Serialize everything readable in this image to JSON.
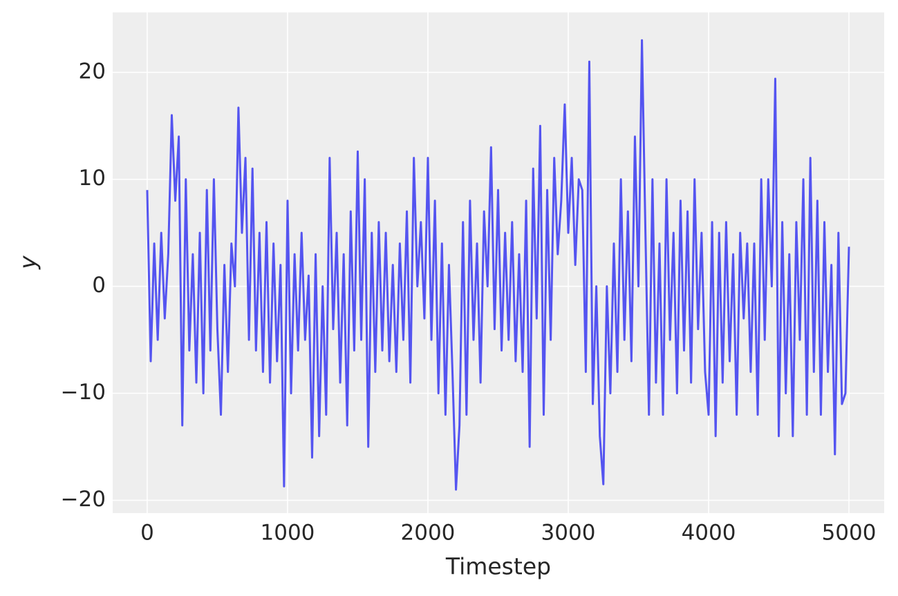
{
  "chart_data": {
    "type": "line",
    "x_label": "Timestep",
    "y_label": "y",
    "color": "#4b4bef",
    "grid": true,
    "xlim": [
      -246,
      5251
    ],
    "ylim": [
      -21.2,
      25.6
    ],
    "xticks": [
      0,
      1000,
      2000,
      3000,
      4000,
      5000
    ],
    "yticks": [
      {
        "value": -20,
        "label": "−20"
      },
      {
        "value": -10,
        "label": "−10"
      },
      0,
      10,
      20
    ],
    "x": [
      0,
      25,
      50,
      75,
      100,
      125,
      150,
      175,
      200,
      225,
      250,
      275,
      300,
      325,
      350,
      375,
      400,
      425,
      450,
      475,
      500,
      525,
      550,
      575,
      600,
      625,
      650,
      675,
      700,
      725,
      750,
      775,
      800,
      825,
      850,
      875,
      900,
      925,
      950,
      975,
      1000,
      1025,
      1050,
      1075,
      1100,
      1125,
      1150,
      1175,
      1200,
      1225,
      1250,
      1275,
      1300,
      1325,
      1350,
      1375,
      1400,
      1425,
      1450,
      1475,
      1500,
      1525,
      1550,
      1575,
      1600,
      1625,
      1650,
      1675,
      1700,
      1725,
      1750,
      1775,
      1800,
      1825,
      1850,
      1875,
      1900,
      1925,
      1950,
      1975,
      2000,
      2025,
      2050,
      2075,
      2100,
      2125,
      2150,
      2175,
      2200,
      2225,
      2250,
      2275,
      2300,
      2325,
      2350,
      2375,
      2400,
      2425,
      2450,
      2475,
      2500,
      2525,
      2550,
      2575,
      2600,
      2625,
      2650,
      2675,
      2700,
      2725,
      2750,
      2775,
      2800,
      2825,
      2850,
      2875,
      2900,
      2925,
      2950,
      2975,
      3000,
      3025,
      3050,
      3075,
      3100,
      3125,
      3150,
      3175,
      3200,
      3225,
      3250,
      3275,
      3300,
      3325,
      3350,
      3375,
      3400,
      3425,
      3450,
      3475,
      3500,
      3525,
      3550,
      3575,
      3600,
      3625,
      3650,
      3675,
      3700,
      3725,
      3750,
      3775,
      3800,
      3825,
      3850,
      3875,
      3900,
      3925,
      3950,
      3975,
      4000,
      4025,
      4050,
      4075,
      4100,
      4125,
      4150,
      4175,
      4200,
      4225,
      4250,
      4275,
      4300,
      4325,
      4350,
      4375,
      4400,
      4425,
      4450,
      4475,
      4500,
      4525,
      4550,
      4575,
      4600,
      4625,
      4650,
      4675,
      4700,
      4725,
      4750,
      4775,
      4800,
      4825,
      4850,
      4875,
      4900,
      4925,
      4950,
      4975,
      5000
    ],
    "values": [
      9,
      -7,
      4,
      -5,
      5,
      -3,
      3,
      16,
      8,
      14,
      -13,
      10,
      -6,
      3,
      -9,
      5,
      -10,
      9,
      -6,
      10,
      -4,
      -12,
      2,
      -8,
      4,
      0,
      16.7,
      5,
      12,
      -5,
      11,
      -6,
      5,
      -8,
      6,
      -9,
      4,
      -7,
      2,
      -18.7,
      8,
      -10,
      3,
      -6,
      5,
      -5,
      1,
      -16,
      3,
      -14,
      0,
      -12,
      12,
      -4,
      5,
      -9,
      3,
      -13,
      7,
      -6,
      12.6,
      -5,
      10,
      -15,
      5,
      -8,
      6,
      -6,
      5,
      -7,
      2,
      -8,
      4,
      -5,
      7,
      -9,
      12,
      0,
      6,
      -3,
      12,
      -5,
      8,
      -10,
      4,
      -12,
      2,
      -8,
      -19,
      -13,
      6,
      -12,
      8,
      -5,
      4,
      -9,
      7,
      0,
      13,
      -4,
      9,
      -6,
      5,
      -5,
      6,
      -7,
      3,
      -8,
      8,
      -15,
      11,
      -3,
      15,
      -12,
      9,
      -5,
      12,
      3,
      8,
      17,
      5,
      12,
      2,
      10,
      9,
      -8,
      21,
      -11,
      0,
      -14,
      -18.5,
      0,
      -10,
      4,
      -8,
      10,
      -5,
      7,
      -7,
      14,
      0,
      23,
      5,
      -12,
      10,
      -9,
      4,
      -12,
      10,
      -5,
      5,
      -10,
      8,
      -6,
      7,
      -9,
      10,
      -4,
      5,
      -8,
      -12,
      6,
      -14,
      5,
      -9,
      6,
      -7,
      3,
      -12,
      5,
      -3,
      4,
      -8,
      4,
      -12,
      10,
      -5,
      10,
      0,
      19.4,
      -14,
      6,
      -10,
      3,
      -14,
      6,
      -5,
      10,
      -12,
      12,
      -8,
      8,
      -12,
      6,
      -8,
      2,
      -15.7,
      5,
      -11,
      -10,
      3.7
    ]
  }
}
